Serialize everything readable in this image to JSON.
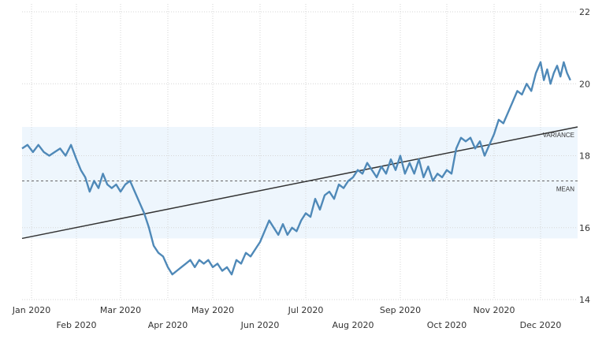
{
  "chart_data": {
    "type": "line",
    "title": "",
    "xlabel": "",
    "ylabel": "",
    "ylim": [
      14,
      22
    ],
    "y_ticks": [
      14,
      16,
      18,
      20,
      22
    ],
    "x_ticks": [
      "Jan 2020",
      "Feb 2020",
      "Mar 2020",
      "Apr 2020",
      "May 2020",
      "Jun 2020",
      "Jul 2020",
      "Aug 2020",
      "Sep 2020",
      "Oct 2020",
      "Nov 2020",
      "Dec 2020"
    ],
    "grid": true,
    "colors": {
      "series": "#4f89b8",
      "trend": "#333333",
      "band": "#eef6fd",
      "mean": "#666666"
    },
    "variance_band": {
      "label": "VARIANCE",
      "low": 15.7,
      "high": 18.8
    },
    "mean_line": {
      "label": "MEAN",
      "value": 17.3
    },
    "trend_line": {
      "start": [
        "Jan 2020",
        15.7
      ],
      "end": [
        "Dec 2020 end",
        18.8
      ]
    },
    "series": [
      {
        "values": [
          [
            "Jan 2020",
            18.2
          ],
          [
            "Jan 2020",
            18.3
          ],
          [
            "Jan 2020",
            18.1
          ],
          [
            "Jan 2020",
            18.3
          ],
          [
            "Jan 2020",
            18.1
          ],
          [
            "Jan 2020",
            18.0
          ],
          [
            "Jan 2020",
            18.1
          ],
          [
            "Jan 2020",
            18.2
          ],
          [
            "Jan 2020",
            18.0
          ],
          [
            "Jan 2020",
            18.3
          ],
          [
            "Feb 2020",
            17.9
          ],
          [
            "Feb 2020",
            17.6
          ],
          [
            "Feb 2020",
            17.4
          ],
          [
            "Feb 2020",
            17.0
          ],
          [
            "Feb 2020",
            17.3
          ],
          [
            "Feb 2020",
            17.1
          ],
          [
            "Feb 2020",
            17.5
          ],
          [
            "Feb 2020",
            17.2
          ],
          [
            "Feb 2020",
            17.1
          ],
          [
            "Feb 2020",
            17.2
          ],
          [
            "Mar 2020",
            17.0
          ],
          [
            "Mar 2020",
            17.2
          ],
          [
            "Mar 2020",
            17.3
          ],
          [
            "Mar 2020",
            17.0
          ],
          [
            "Mar 2020",
            16.7
          ],
          [
            "Mar 2020",
            16.4
          ],
          [
            "Mar 2020",
            16.0
          ],
          [
            "Mar 2020",
            15.5
          ],
          [
            "Mar 2020",
            15.3
          ],
          [
            "Mar 2020",
            15.2
          ],
          [
            "Apr 2020",
            14.9
          ],
          [
            "Apr 2020",
            14.7
          ],
          [
            "Apr 2020",
            14.8
          ],
          [
            "Apr 2020",
            14.9
          ],
          [
            "Apr 2020",
            15.0
          ],
          [
            "Apr 2020",
            15.1
          ],
          [
            "Apr 2020",
            14.9
          ],
          [
            "Apr 2020",
            15.1
          ],
          [
            "Apr 2020",
            15.0
          ],
          [
            "Apr 2020",
            15.1
          ],
          [
            "May 2020",
            14.9
          ],
          [
            "May 2020",
            15.0
          ],
          [
            "May 2020",
            14.8
          ],
          [
            "May 2020",
            14.9
          ],
          [
            "May 2020",
            14.7
          ],
          [
            "May 2020",
            15.1
          ],
          [
            "May 2020",
            15.0
          ],
          [
            "May 2020",
            15.3
          ],
          [
            "May 2020",
            15.2
          ],
          [
            "May 2020",
            15.4
          ],
          [
            "Jun 2020",
            15.6
          ],
          [
            "Jun 2020",
            15.9
          ],
          [
            "Jun 2020",
            16.2
          ],
          [
            "Jun 2020",
            16.0
          ],
          [
            "Jun 2020",
            15.8
          ],
          [
            "Jun 2020",
            16.1
          ],
          [
            "Jun 2020",
            15.8
          ],
          [
            "Jun 2020",
            16.0
          ],
          [
            "Jun 2020",
            15.9
          ],
          [
            "Jun 2020",
            16.2
          ],
          [
            "Jul 2020",
            16.4
          ],
          [
            "Jul 2020",
            16.3
          ],
          [
            "Jul 2020",
            16.8
          ],
          [
            "Jul 2020",
            16.5
          ],
          [
            "Jul 2020",
            16.9
          ],
          [
            "Jul 2020",
            17.0
          ],
          [
            "Jul 2020",
            16.8
          ],
          [
            "Jul 2020",
            17.2
          ],
          [
            "Jul 2020",
            17.1
          ],
          [
            "Jul 2020",
            17.3
          ],
          [
            "Aug 2020",
            17.4
          ],
          [
            "Aug 2020",
            17.6
          ],
          [
            "Aug 2020",
            17.5
          ],
          [
            "Aug 2020",
            17.8
          ],
          [
            "Aug 2020",
            17.6
          ],
          [
            "Aug 2020",
            17.4
          ],
          [
            "Aug 2020",
            17.7
          ],
          [
            "Aug 2020",
            17.5
          ],
          [
            "Aug 2020",
            17.9
          ],
          [
            "Aug 2020",
            17.6
          ],
          [
            "Sep 2020",
            18.0
          ],
          [
            "Sep 2020",
            17.5
          ],
          [
            "Sep 2020",
            17.8
          ],
          [
            "Sep 2020",
            17.5
          ],
          [
            "Sep 2020",
            17.9
          ],
          [
            "Sep 2020",
            17.4
          ],
          [
            "Sep 2020",
            17.7
          ],
          [
            "Sep 2020",
            17.3
          ],
          [
            "Sep 2020",
            17.5
          ],
          [
            "Sep 2020",
            17.4
          ],
          [
            "Oct 2020",
            17.6
          ],
          [
            "Oct 2020",
            17.5
          ],
          [
            "Oct 2020",
            18.2
          ],
          [
            "Oct 2020",
            18.5
          ],
          [
            "Oct 2020",
            18.4
          ],
          [
            "Oct 2020",
            18.5
          ],
          [
            "Oct 2020",
            18.2
          ],
          [
            "Oct 2020",
            18.4
          ],
          [
            "Oct 2020",
            18.0
          ],
          [
            "Oct 2020",
            18.3
          ],
          [
            "Nov 2020",
            18.6
          ],
          [
            "Nov 2020",
            19.0
          ],
          [
            "Nov 2020",
            18.9
          ],
          [
            "Nov 2020",
            19.2
          ],
          [
            "Nov 2020",
            19.5
          ],
          [
            "Nov 2020",
            19.8
          ],
          [
            "Nov 2020",
            19.7
          ],
          [
            "Nov 2020",
            20.0
          ],
          [
            "Nov 2020",
            19.8
          ],
          [
            "Nov 2020",
            20.3
          ],
          [
            "Dec 2020",
            20.6
          ],
          [
            "Dec 2020",
            20.1
          ],
          [
            "Dec 2020",
            20.4
          ],
          [
            "Dec 2020",
            20.0
          ],
          [
            "Dec 2020",
            20.3
          ],
          [
            "Dec 2020",
            20.5
          ],
          [
            "Dec 2020",
            20.2
          ],
          [
            "Dec 2020",
            20.6
          ],
          [
            "Dec 2020",
            20.3
          ],
          [
            "Dec 2020",
            20.1
          ]
        ]
      }
    ]
  }
}
